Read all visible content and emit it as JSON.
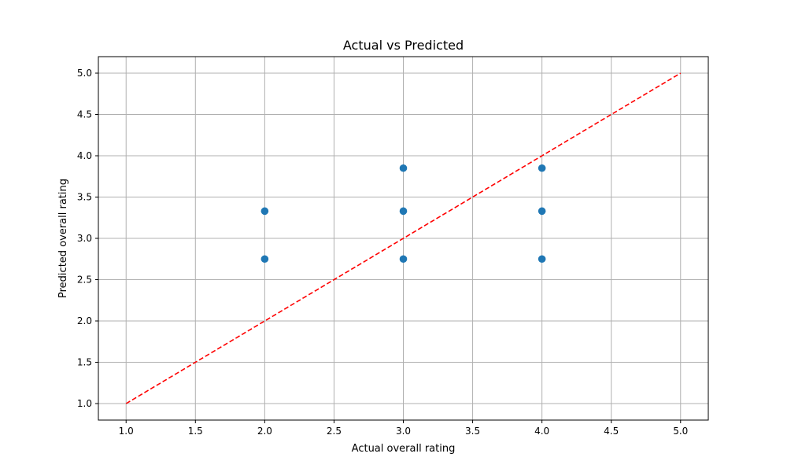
{
  "chart_data": {
    "type": "scatter",
    "title": "Actual vs Predicted",
    "xlabel": "Actual overall rating",
    "ylabel": "Predicted overall rating",
    "xlim": [
      0.8,
      5.2
    ],
    "ylim": [
      0.8,
      5.2
    ],
    "xticks": [
      "1.0",
      "1.5",
      "2.0",
      "2.5",
      "3.0",
      "3.5",
      "4.0",
      "4.5",
      "5.0"
    ],
    "yticks": [
      "1.0",
      "1.5",
      "2.0",
      "2.5",
      "3.0",
      "3.5",
      "4.0",
      "4.5",
      "5.0"
    ],
    "grid": true,
    "series": [
      {
        "color": "#1f77b4",
        "points": [
          {
            "x": 2.0,
            "y": 3.33
          },
          {
            "x": 2.0,
            "y": 2.75
          },
          {
            "x": 3.0,
            "y": 3.85
          },
          {
            "x": 3.0,
            "y": 3.33
          },
          {
            "x": 3.0,
            "y": 2.75
          },
          {
            "x": 4.0,
            "y": 3.85
          },
          {
            "x": 4.0,
            "y": 3.33
          },
          {
            "x": 4.0,
            "y": 2.75
          }
        ]
      }
    ],
    "reference_line": {
      "x": [
        1.0,
        5.0
      ],
      "y": [
        1.0,
        5.0
      ],
      "color": "#ff0000",
      "style": "dashed"
    }
  }
}
